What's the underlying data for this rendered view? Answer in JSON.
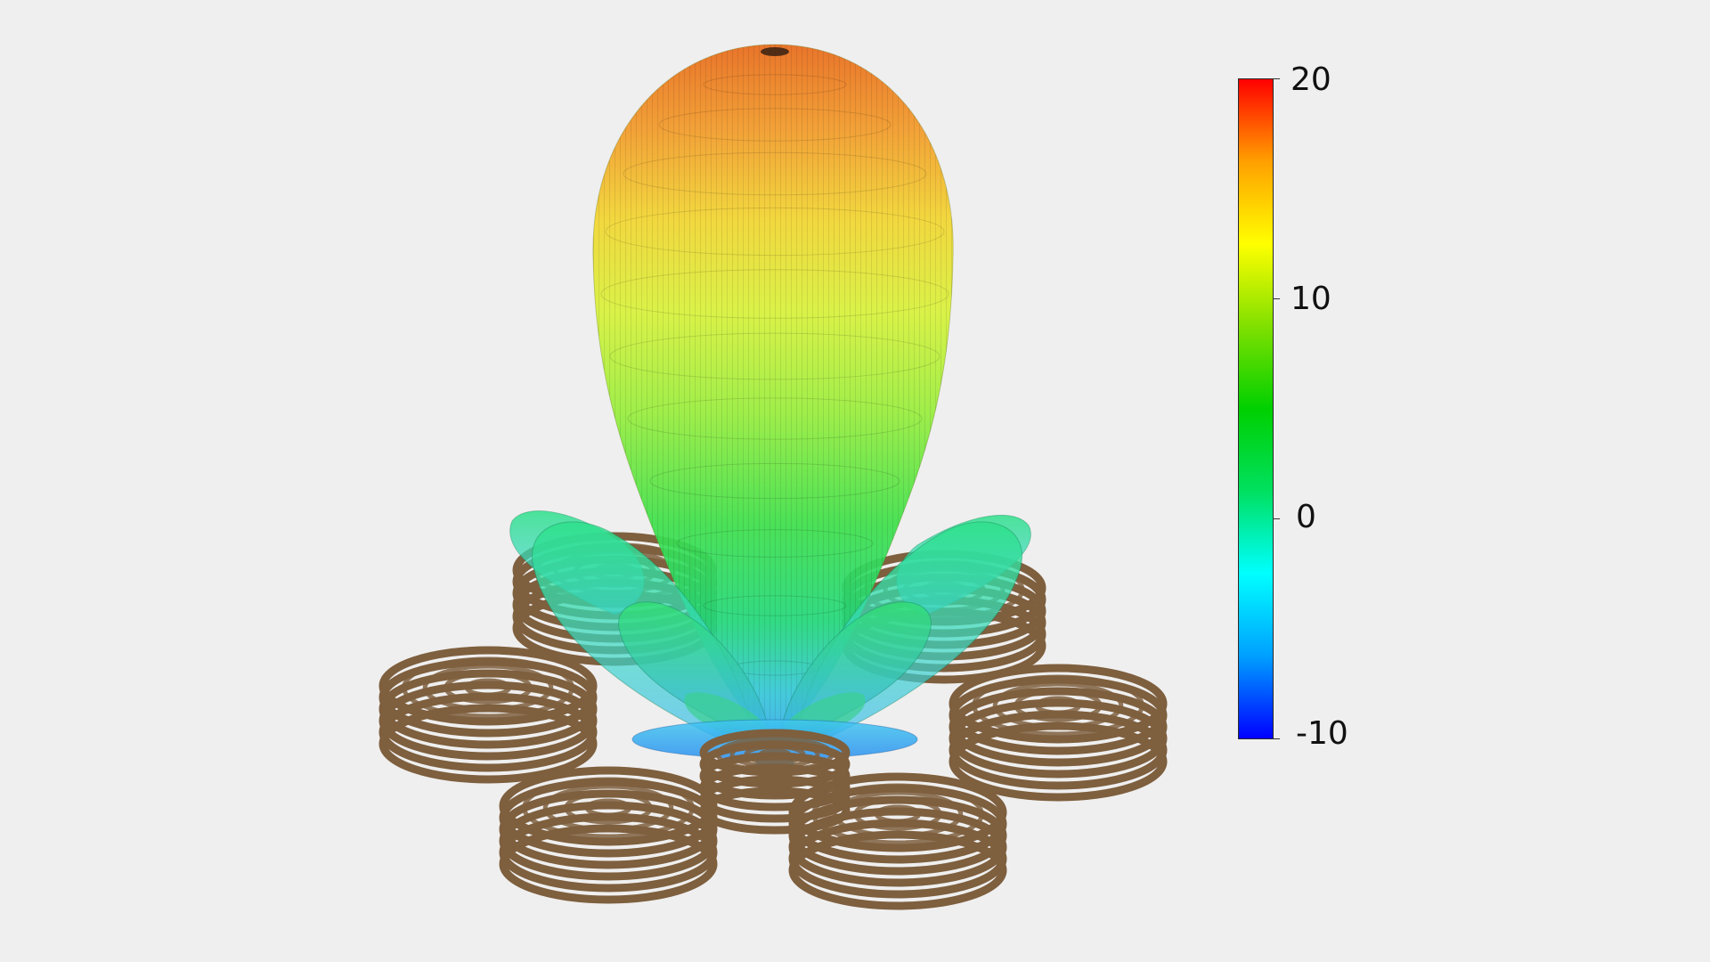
{
  "figure": {
    "type": "3D radiation pattern with helical antenna array",
    "background_color": "#efefef",
    "element_color": "#7e5f3e"
  },
  "colorbar": {
    "min": -10,
    "max": 20,
    "labels": [
      "20",
      "10",
      "0",
      "-10"
    ],
    "colors": [
      "#0000ff",
      "#00a0ff",
      "#00ffff",
      "#00e060",
      "#00d000",
      "#80e000",
      "#ffff00",
      "#ffa000",
      "#ff0000"
    ]
  },
  "array": {
    "element_count": 7
  }
}
